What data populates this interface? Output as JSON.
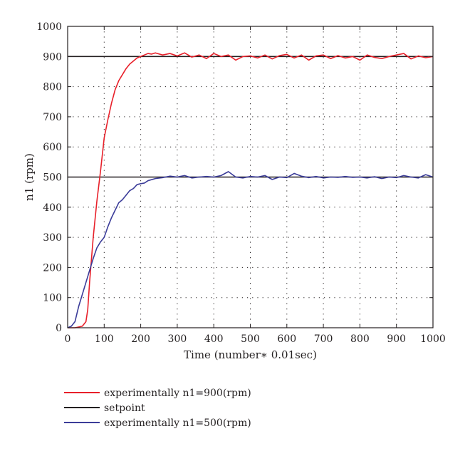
{
  "chart_data": {
    "type": "line",
    "title": "",
    "xlabel": "Time (number∗ 0.01sec)",
    "ylabel": "n1 (rpm)",
    "xlim": [
      0,
      1000
    ],
    "ylim": [
      0,
      1000
    ],
    "xticks": [
      "0",
      "100",
      "200",
      "300",
      "400",
      "500",
      "600",
      "700",
      "800",
      "900",
      "1000"
    ],
    "yticks": [
      "0",
      "100",
      "200",
      "300",
      "400",
      "500",
      "600",
      "700",
      "800",
      "900",
      "1000"
    ],
    "grid": true,
    "legend_position": "below-left",
    "series": [
      {
        "name": "experimentally n1=900(rpm)",
        "color": "#e8202a",
        "x": [
          0,
          20,
          40,
          50,
          55,
          60,
          70,
          80,
          90,
          100,
          110,
          120,
          130,
          140,
          150,
          160,
          170,
          180,
          190,
          200,
          210,
          220,
          230,
          240,
          260,
          280,
          300,
          320,
          340,
          360,
          380,
          400,
          420,
          440,
          460,
          480,
          500,
          520,
          540,
          560,
          580,
          600,
          620,
          640,
          660,
          680,
          700,
          720,
          740,
          760,
          780,
          800,
          820,
          840,
          860,
          880,
          900,
          920,
          940,
          960,
          980,
          1000
        ],
        "y": [
          0,
          0,
          5,
          20,
          60,
          150,
          300,
          420,
          520,
          630,
          690,
          745,
          790,
          820,
          840,
          860,
          875,
          885,
          895,
          900,
          905,
          910,
          908,
          912,
          905,
          910,
          902,
          912,
          898,
          905,
          893,
          910,
          900,
          905,
          888,
          900,
          902,
          895,
          905,
          892,
          903,
          907,
          895,
          905,
          888,
          902,
          905,
          893,
          903,
          895,
          900,
          888,
          905,
          897,
          893,
          900,
          905,
          910,
          892,
          902,
          896,
          900
        ]
      },
      {
        "name": "setpoint",
        "color": "#231f20",
        "segments": [
          {
            "x": [
              0,
              1000
            ],
            "y": [
              900,
              900
            ]
          },
          {
            "x": [
              0,
              1000
            ],
            "y": [
              500,
              500
            ]
          }
        ]
      },
      {
        "name": "experimentally n1=500(rpm)",
        "color": "#3b3c99",
        "x": [
          0,
          10,
          20,
          30,
          40,
          50,
          60,
          70,
          80,
          90,
          100,
          110,
          120,
          130,
          140,
          150,
          160,
          170,
          180,
          190,
          200,
          210,
          220,
          240,
          260,
          280,
          300,
          320,
          340,
          360,
          380,
          400,
          420,
          440,
          460,
          480,
          500,
          520,
          540,
          560,
          580,
          600,
          620,
          640,
          660,
          680,
          700,
          720,
          740,
          760,
          780,
          800,
          820,
          840,
          860,
          880,
          900,
          920,
          940,
          960,
          980,
          1000
        ],
        "y": [
          0,
          5,
          20,
          70,
          110,
          150,
          190,
          230,
          265,
          285,
          300,
          335,
          365,
          390,
          415,
          425,
          440,
          455,
          462,
          475,
          478,
          480,
          488,
          495,
          498,
          503,
          500,
          505,
          497,
          500,
          502,
          500,
          505,
          518,
          500,
          497,
          502,
          500,
          505,
          492,
          500,
          498,
          512,
          503,
          498,
          502,
          497,
          500,
          499,
          502,
          499,
          500,
          497,
          501,
          495,
          500,
          498,
          505,
          500,
          497,
          508,
          500
        ]
      }
    ]
  }
}
